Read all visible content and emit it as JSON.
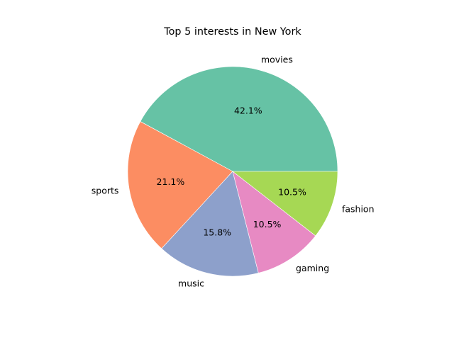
{
  "chart_data": {
    "type": "pie",
    "title": "Top 5 interests in New York",
    "categories": [
      "movies",
      "sports",
      "music",
      "gaming",
      "fashion"
    ],
    "values": [
      8,
      4,
      3,
      2,
      2
    ],
    "percent_labels": [
      "42.1%",
      "21.1%",
      "15.8%",
      "10.5%",
      "10.5%"
    ],
    "colors": [
      "#66c2a5",
      "#fc8d62",
      "#8da0cb",
      "#e78ac3",
      "#a6d854"
    ],
    "start_angle_deg": 0,
    "direction": "counterclockwise",
    "legend": "none"
  }
}
